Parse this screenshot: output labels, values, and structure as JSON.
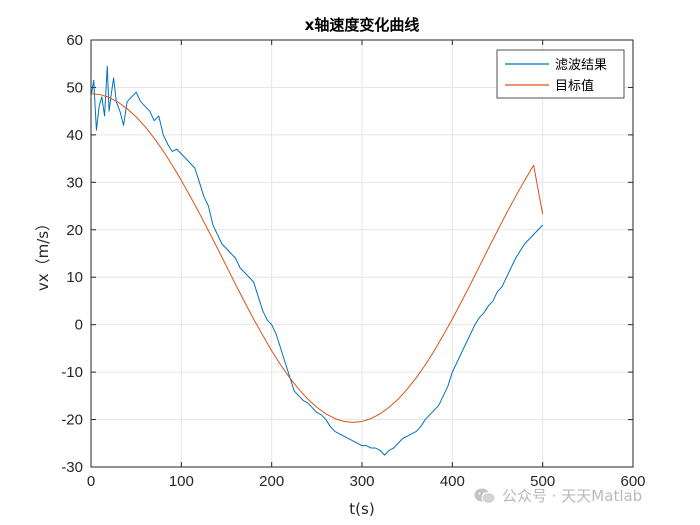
{
  "colors": {
    "filtered": "#0072BD",
    "target": "#D95319",
    "grid": "#e6e6e6",
    "axis": "#262626",
    "watermark": "#b9b9b9"
  },
  "chart_data": {
    "type": "line",
    "title": "x轴速度变化曲线",
    "xlabel": "t(s)",
    "ylabel": "vx（m/s）",
    "xlim": [
      0,
      600
    ],
    "ylim": [
      -30,
      60
    ],
    "xticks": [
      0,
      100,
      200,
      300,
      400,
      500,
      600
    ],
    "yticks": [
      -30,
      -20,
      -10,
      0,
      10,
      20,
      30,
      40,
      50,
      60
    ],
    "grid": true,
    "legend_position": "top-right",
    "series": [
      {
        "name": "滤波结果",
        "color": "#0072BD",
        "x": [
          0,
          3,
          6,
          9,
          12,
          15,
          18,
          20,
          22,
          25,
          28,
          32,
          36,
          40,
          45,
          50,
          55,
          60,
          65,
          70,
          75,
          80,
          85,
          90,
          95,
          100,
          105,
          110,
          115,
          120,
          125,
          130,
          135,
          140,
          145,
          150,
          155,
          160,
          165,
          170,
          175,
          180,
          185,
          190,
          195,
          200,
          205,
          210,
          215,
          220,
          225,
          230,
          235,
          240,
          245,
          250,
          255,
          260,
          265,
          270,
          275,
          280,
          285,
          290,
          295,
          300,
          305,
          310,
          315,
          320,
          325,
          330,
          335,
          340,
          345,
          350,
          355,
          360,
          365,
          370,
          375,
          380,
          385,
          390,
          395,
          400,
          405,
          410,
          415,
          420,
          425,
          430,
          435,
          440,
          445,
          450,
          455,
          460,
          465,
          470,
          475,
          480,
          485,
          490,
          495,
          500
        ],
        "y": [
          48,
          51.5,
          41,
          46,
          48,
          44,
          54.5,
          45,
          48,
          52,
          47,
          45,
          42,
          47,
          48,
          49,
          47,
          46,
          45,
          43,
          44,
          40,
          38,
          36.5,
          37,
          36,
          35,
          34,
          33,
          30,
          27,
          25,
          21,
          19,
          17,
          16,
          15,
          14,
          12,
          11,
          10,
          9,
          6,
          3,
          1,
          0,
          -2,
          -5,
          -8,
          -11,
          -14,
          -15,
          -16,
          -16.5,
          -17.5,
          -18.5,
          -19,
          -20,
          -21.5,
          -22.5,
          -23,
          -23.5,
          -24,
          -24.5,
          -25,
          -25.5,
          -25.5,
          -26,
          -26,
          -26.5,
          -27.5,
          -26.5,
          -26,
          -25,
          -24,
          -23.5,
          -23,
          -22.5,
          -21.5,
          -20,
          -19,
          -18,
          -17,
          -15,
          -13,
          -10,
          -8,
          -6,
          -4,
          -2,
          0,
          1.5,
          2.5,
          4,
          5,
          7,
          8,
          10,
          12,
          14,
          15.5,
          17,
          18,
          19,
          20,
          21
        ]
      },
      {
        "name": "目标值",
        "color": "#D95319",
        "x": [
          0,
          10,
          20,
          30,
          40,
          50,
          60,
          70,
          80,
          90,
          100,
          110,
          120,
          130,
          140,
          150,
          160,
          170,
          180,
          190,
          200,
          210,
          220,
          230,
          240,
          250,
          260,
          270,
          280,
          290,
          300,
          310,
          320,
          330,
          340,
          350,
          360,
          370,
          380,
          390,
          400,
          410,
          420,
          430,
          440,
          450,
          460,
          470,
          480,
          490,
          500
        ],
        "y": [
          48.7,
          48.5,
          47.9,
          46.9,
          45.5,
          43.8,
          41.7,
          39.3,
          36.6,
          33.6,
          30.4,
          27.0,
          23.5,
          19.8,
          16.1,
          12.3,
          8.5,
          4.8,
          1.2,
          -2.2,
          -5.5,
          -8.5,
          -11.2,
          -13.6,
          -15.7,
          -17.4,
          -18.8,
          -19.8,
          -20.4,
          -20.6,
          -20.4,
          -19.8,
          -18.8,
          -17.4,
          -15.7,
          -13.6,
          -11.2,
          -8.5,
          -5.5,
          -2.2,
          1.2,
          4.8,
          8.5,
          12.3,
          16.1,
          19.8,
          23.5,
          27.0,
          30.4,
          33.6,
          23.3
        ]
      }
    ]
  },
  "watermark": {
    "text": "公众号 · 天天Matlab",
    "icon": "wechat-icon"
  }
}
